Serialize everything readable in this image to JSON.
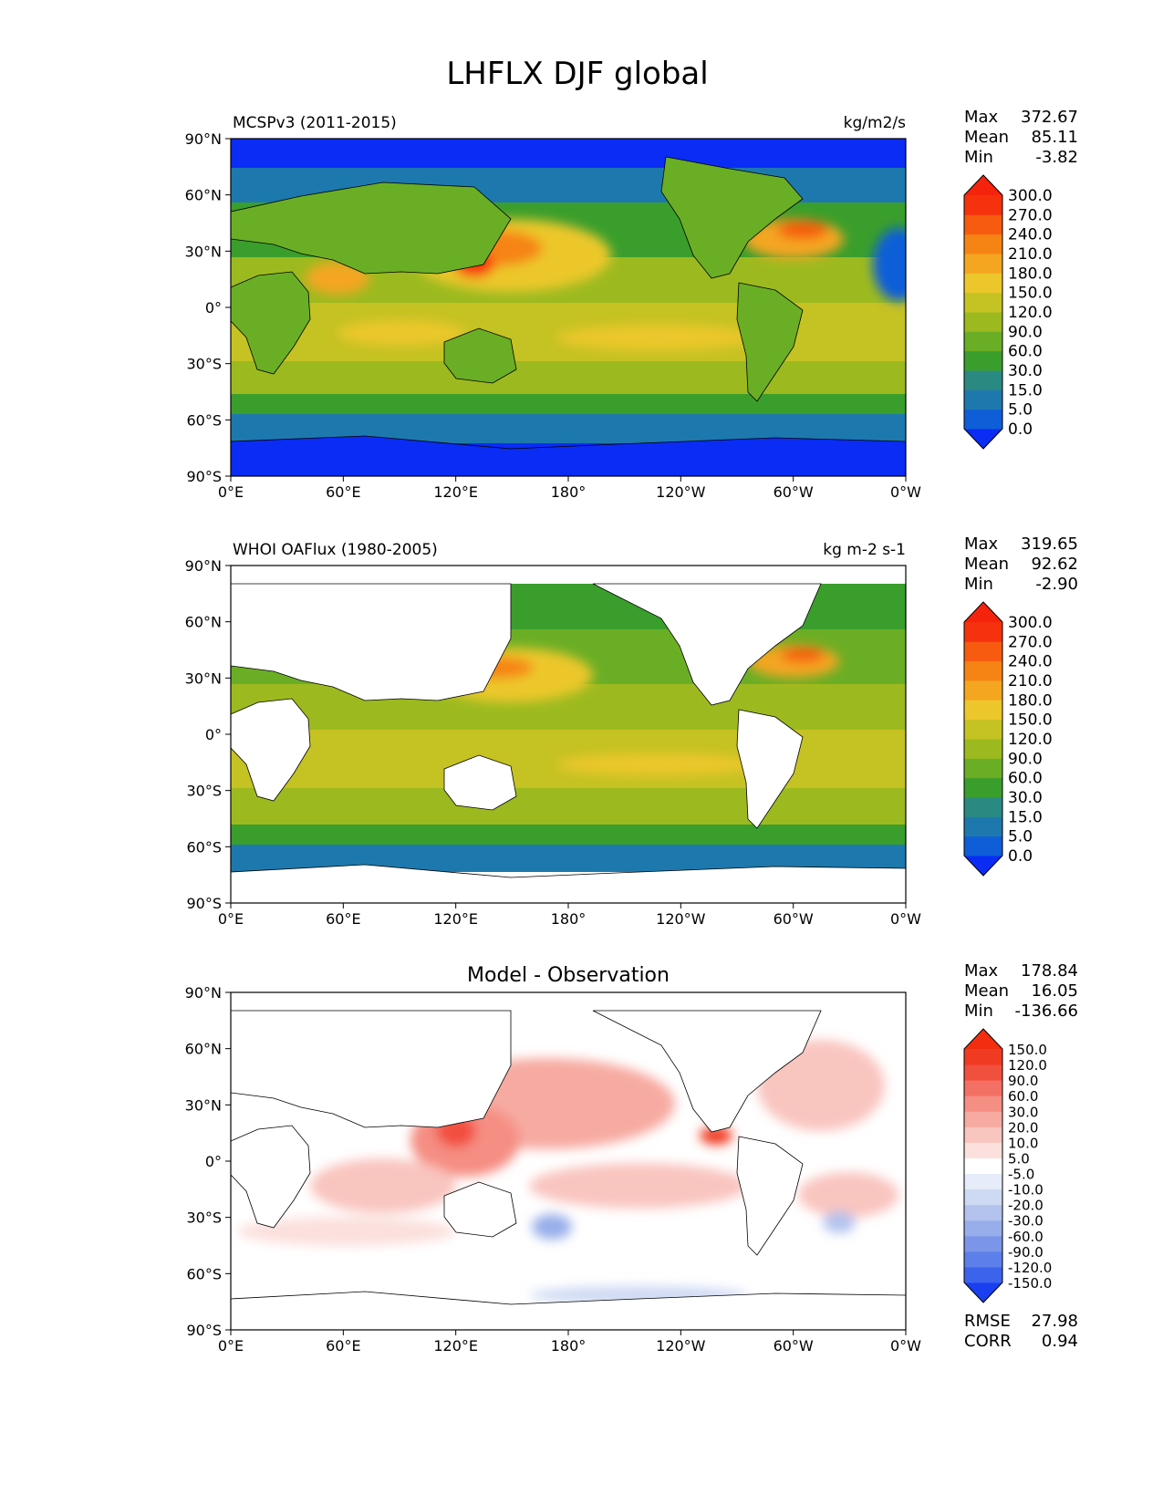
{
  "figure": {
    "title": "LHFLX DJF global"
  },
  "chart_data": [
    {
      "type": "heatmap",
      "title_left": "MCSPv3 (2011-2015)",
      "title_center": "",
      "title_right": "kg/m2/s",
      "x_ticks": [
        "0°E",
        "60°E",
        "120°E",
        "180°",
        "120°W",
        "60°W",
        "0°W"
      ],
      "y_ticks": [
        "90°N",
        "60°N",
        "30°N",
        "0°",
        "30°S",
        "60°S",
        "90°S"
      ],
      "stats": {
        "max_label": "Max",
        "max": "372.67",
        "mean_label": "Mean",
        "mean": "85.11",
        "min_label": "Min",
        "min": "-3.82"
      },
      "colorbar": {
        "levels": [
          "0.0",
          "5.0",
          "15.0",
          "30.0",
          "60.0",
          "90.0",
          "120.0",
          "150.0",
          "180.0",
          "210.0",
          "240.0",
          "270.0",
          "300.0"
        ],
        "colors": [
          "#0a2cf5",
          "#0e5ed8",
          "#1d79ad",
          "#2a8a82",
          "#3a9e2c",
          "#6aae25",
          "#9cba1f",
          "#c5c223",
          "#ecc72b",
          "#f4a621",
          "#f68414",
          "#f65b10",
          "#f6310e",
          "#f5230c"
        ],
        "under_color": "#0a2cf5",
        "over_color": "#f5230c"
      },
      "ocean_only": false
    },
    {
      "type": "heatmap",
      "title_left": "WHOI OAFlux (1980-2005)",
      "title_center": "",
      "title_right": "kg m-2 s-1",
      "x_ticks": [
        "0°E",
        "60°E",
        "120°E",
        "180°",
        "120°W",
        "60°W",
        "0°W"
      ],
      "y_ticks": [
        "90°N",
        "60°N",
        "30°N",
        "0°",
        "30°S",
        "60°S",
        "90°S"
      ],
      "stats": {
        "max_label": "Max",
        "max": "319.65",
        "mean_label": "Mean",
        "mean": "92.62",
        "min_label": "Min",
        "min": "-2.90"
      },
      "colorbar": {
        "levels": [
          "0.0",
          "5.0",
          "15.0",
          "30.0",
          "60.0",
          "90.0",
          "120.0",
          "150.0",
          "180.0",
          "210.0",
          "240.0",
          "270.0",
          "300.0"
        ],
        "colors": [
          "#0a2cf5",
          "#0e5ed8",
          "#1d79ad",
          "#2a8a82",
          "#3a9e2c",
          "#6aae25",
          "#9cba1f",
          "#c5c223",
          "#ecc72b",
          "#f4a621",
          "#f68414",
          "#f65b10",
          "#f6310e",
          "#f5230c"
        ],
        "under_color": "#0a2cf5",
        "over_color": "#f5230c"
      },
      "ocean_only": true
    },
    {
      "type": "heatmap",
      "title_left": "",
      "title_center": "Model - Observation",
      "title_right": "",
      "x_ticks": [
        "0°E",
        "60°E",
        "120°E",
        "180°",
        "120°W",
        "60°W",
        "0°W"
      ],
      "y_ticks": [
        "90°N",
        "60°N",
        "30°N",
        "0°",
        "30°S",
        "60°S",
        "90°S"
      ],
      "stats": {
        "max_label": "Max",
        "max": "178.84",
        "mean_label": "Mean",
        "mean": "16.05",
        "min_label": "Min",
        "min": "-136.66"
      },
      "colorbar": {
        "levels": [
          "-150.0",
          "-120.0",
          "-90.0",
          "-60.0",
          "-30.0",
          "-20.0",
          "-10.0",
          "-5.0",
          "5.0",
          "10.0",
          "20.0",
          "30.0",
          "60.0",
          "90.0",
          "120.0",
          "150.0"
        ],
        "colors": [
          "#1a3ff0",
          "#3c63ec",
          "#5d7fe9",
          "#7b96e8",
          "#98aeea",
          "#b3c3ee",
          "#ced9f3",
          "#e6ecf9",
          "#ffffff",
          "#fbe0dd",
          "#f9c5bf",
          "#f7aaa1",
          "#f58e83",
          "#f47065",
          "#f2503f",
          "#f03a22",
          "#f22d10"
        ],
        "under_color": "#1a3ff0",
        "over_color": "#f22d10"
      },
      "ocean_only": true,
      "extra_stats": {
        "rmse_label": "RMSE",
        "rmse": "27.98",
        "corr_label": "CORR",
        "corr": "0.94"
      }
    }
  ]
}
